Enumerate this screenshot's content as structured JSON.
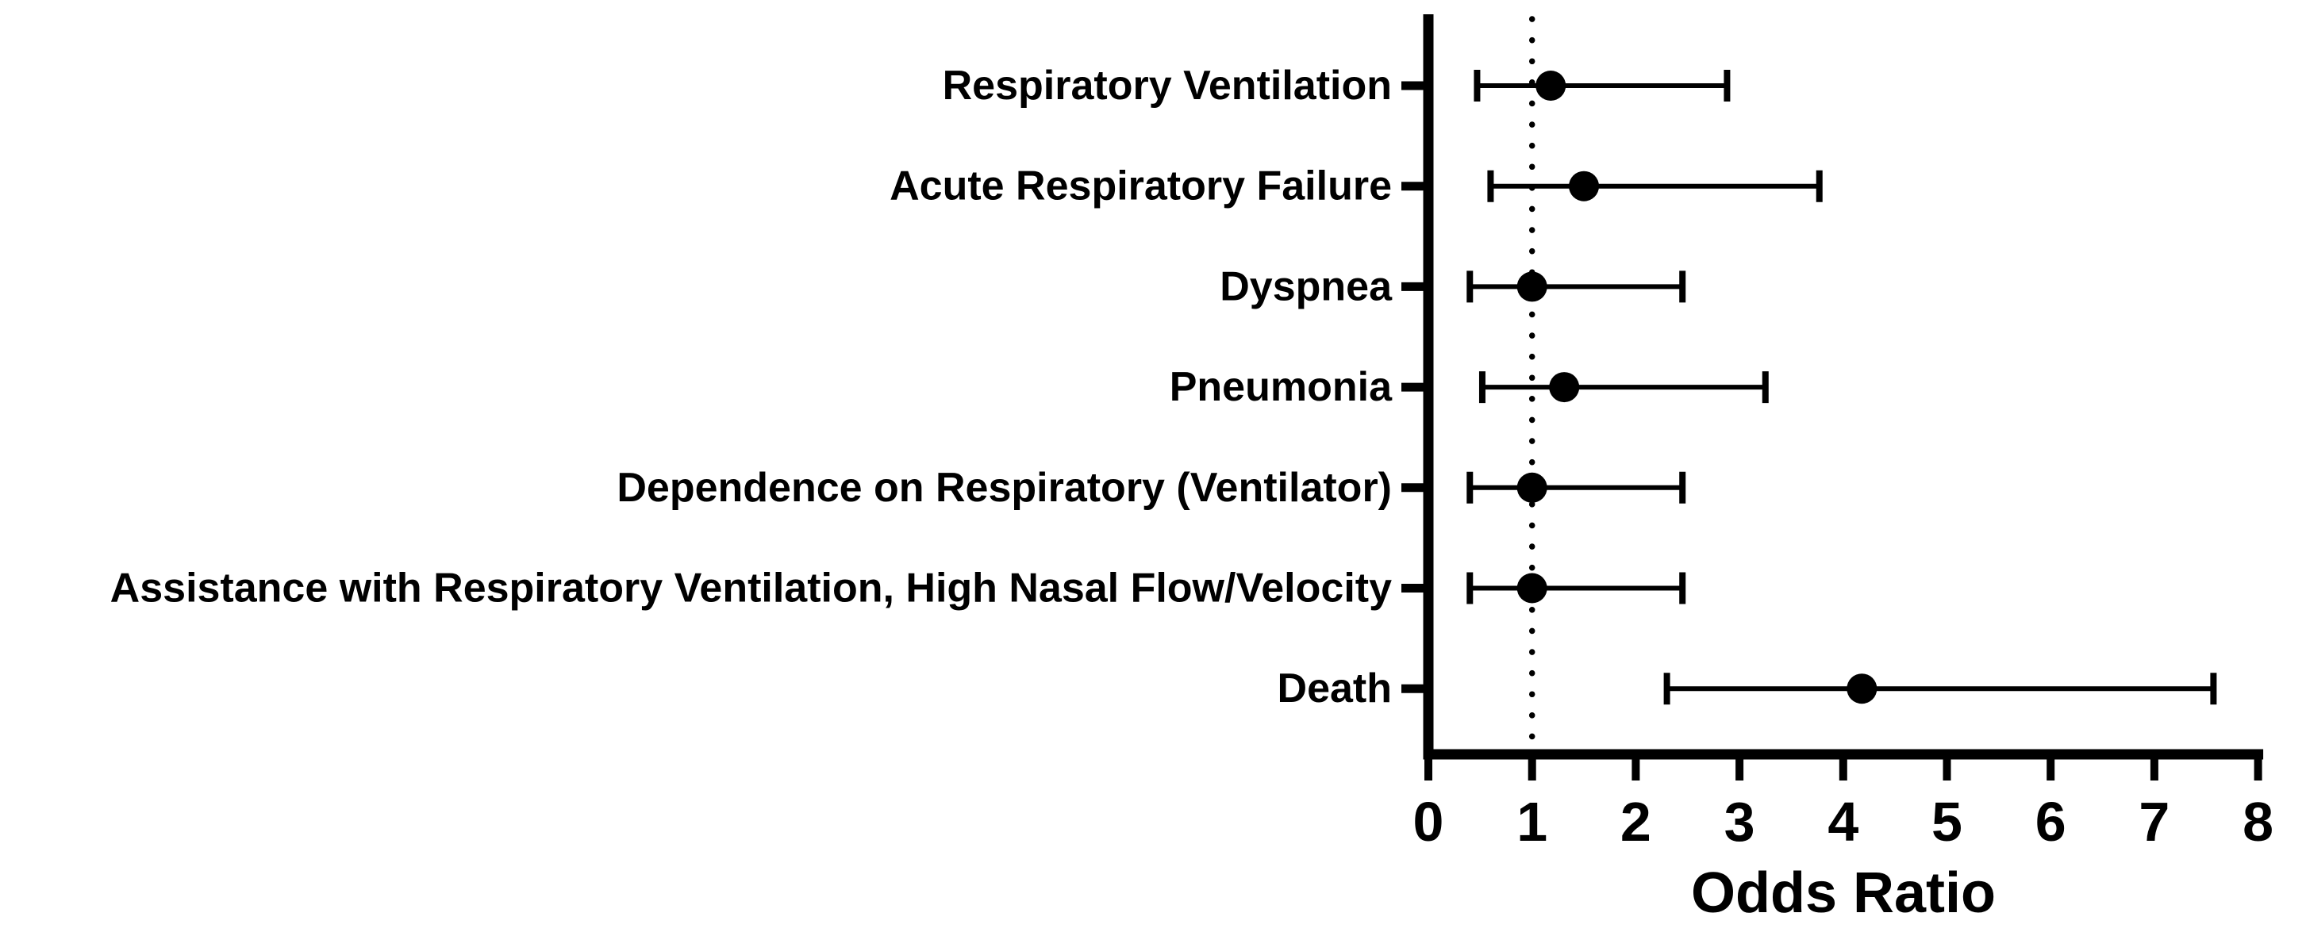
{
  "chart_data": {
    "type": "scatter",
    "subtype": "forest-plot",
    "title": "",
    "xlabel": "Odds Ratio",
    "ylabel": "",
    "xlim": [
      0,
      8
    ],
    "xticks": [
      0,
      1,
      2,
      3,
      4,
      5,
      6,
      7,
      8
    ],
    "reference_line_x": 1,
    "grid": false,
    "legend": "none",
    "marker_color": "#000000",
    "line_color": "#000000",
    "background_color": "#ffffff",
    "rows": [
      {
        "label": "Respiratory Ventilation",
        "or": 1.18,
        "ci_low": 0.47,
        "ci_high": 2.88
      },
      {
        "label": "Acute Respiratory Failure",
        "or": 1.5,
        "ci_low": 0.6,
        "ci_high": 3.77
      },
      {
        "label": "Dyspnea",
        "or": 1.0,
        "ci_low": 0.4,
        "ci_high": 2.45
      },
      {
        "label": "Pneumonia",
        "or": 1.31,
        "ci_low": 0.52,
        "ci_high": 3.25
      },
      {
        "label": "Dependence on Respiratory (Ventilator)",
        "or": 1.0,
        "ci_low": 0.4,
        "ci_high": 2.45
      },
      {
        "label": "Assistance with Respiratory Ventilation, High Nasal Flow/Velocity",
        "or": 1.0,
        "ci_low": 0.4,
        "ci_high": 2.45
      },
      {
        "label": "Death",
        "or": 4.18,
        "ci_low": 2.3,
        "ci_high": 7.57
      }
    ]
  }
}
